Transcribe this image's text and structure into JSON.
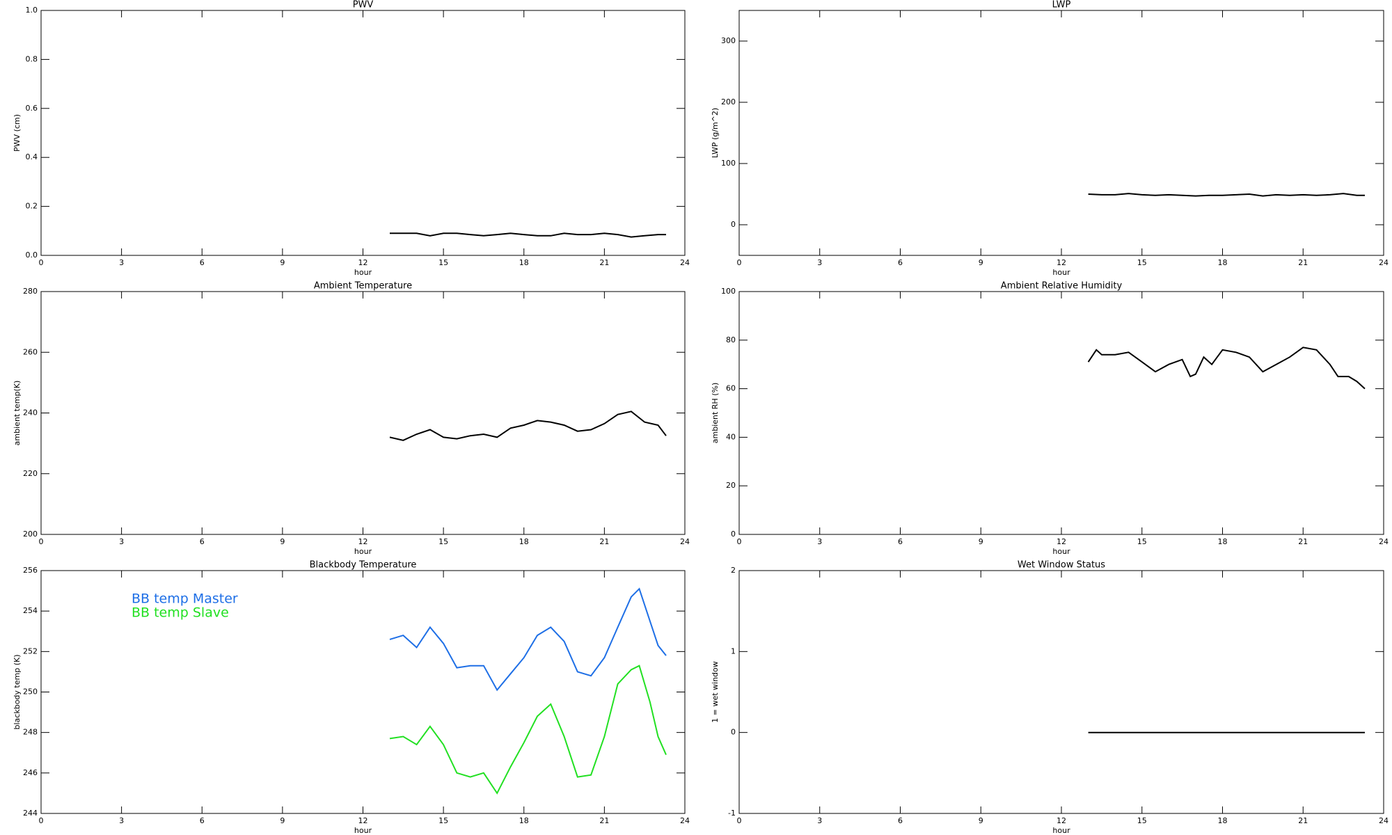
{
  "chart_data": [
    {
      "type": "line",
      "title": "PWV",
      "xlabel": "hour",
      "ylabel": "PWV (cm)",
      "color": "#000000",
      "x": [
        13,
        13.5,
        14,
        14.5,
        15,
        15.5,
        16,
        16.5,
        17,
        17.5,
        18,
        18.5,
        19,
        19.5,
        20,
        20.5,
        21,
        21.5,
        22,
        22.5,
        23,
        23.3
      ],
      "values": [
        0.09,
        0.09,
        0.09,
        0.08,
        0.09,
        0.09,
        0.085,
        0.08,
        0.085,
        0.09,
        0.085,
        0.08,
        0.08,
        0.09,
        0.085,
        0.085,
        0.09,
        0.085,
        0.075,
        0.08,
        0.085,
        0.085
      ],
      "xlim": [
        0,
        24
      ],
      "xticks": [
        0,
        3,
        6,
        9,
        12,
        15,
        18,
        21,
        24
      ],
      "ylim": [
        0,
        1
      ],
      "yticks": [
        {
          "value": 0,
          "label": "0.0"
        },
        0.2,
        0.4,
        0.6,
        0.8,
        {
          "value": 1,
          "label": "1.0"
        }
      ]
    },
    {
      "type": "line",
      "title": "LWP",
      "xlabel": "hour",
      "ylabel": "LWP (g/m^2)",
      "color": "#000000",
      "x": [
        13,
        13.5,
        14,
        14.5,
        15,
        15.5,
        16,
        16.5,
        17,
        17.5,
        18,
        18.5,
        19,
        19.5,
        20,
        20.5,
        21,
        21.5,
        22,
        22.5,
        23,
        23.3
      ],
      "values": [
        50,
        49,
        49,
        51,
        49,
        48,
        49,
        48,
        47,
        48,
        48,
        49,
        50,
        47,
        49,
        48,
        49,
        48,
        49,
        51,
        48,
        48
      ],
      "xlim": [
        0,
        24
      ],
      "xticks": [
        0,
        3,
        6,
        9,
        12,
        15,
        18,
        21,
        24
      ],
      "ylim": [
        -50,
        350
      ],
      "yticks": [
        0,
        100,
        200,
        300
      ]
    },
    {
      "type": "line",
      "title": "Ambient Temperature",
      "xlabel": "hour",
      "ylabel": "ambient temp(K)",
      "color": "#000000",
      "x": [
        13,
        13.5,
        14,
        14.5,
        15,
        15.5,
        16,
        16.5,
        17,
        17.5,
        18,
        18.5,
        19,
        19.5,
        20,
        20.5,
        21,
        21.5,
        22,
        22.5,
        23,
        23.3
      ],
      "values": [
        232,
        231,
        233,
        234.5,
        232,
        231.5,
        232.5,
        233,
        232,
        235,
        236,
        237.5,
        237,
        236,
        234,
        234.5,
        236.5,
        239.5,
        240.5,
        237,
        236,
        232.5
      ],
      "xlim": [
        0,
        24
      ],
      "xticks": [
        0,
        3,
        6,
        9,
        12,
        15,
        18,
        21,
        24
      ],
      "ylim": [
        200,
        280
      ],
      "yticks": [
        200,
        220,
        240,
        260,
        280
      ]
    },
    {
      "type": "line",
      "title": "Ambient Relative Humidity",
      "xlabel": "hour",
      "ylabel": "ambient RH (%)",
      "color": "#000000",
      "x": [
        13,
        13.3,
        13.5,
        14,
        14.5,
        15,
        15.5,
        16,
        16.5,
        16.8,
        17,
        17.3,
        17.6,
        18,
        18.5,
        19,
        19.5,
        20,
        20.5,
        21,
        21.5,
        22,
        22.3,
        22.7,
        23,
        23.3
      ],
      "values": [
        71,
        76,
        74,
        74,
        75,
        71,
        67,
        70,
        72,
        65,
        66,
        73,
        70,
        76,
        75,
        73,
        67,
        70,
        73,
        77,
        76,
        70,
        65,
        65,
        63,
        60
      ],
      "xlim": [
        0,
        24
      ],
      "xticks": [
        0,
        3,
        6,
        9,
        12,
        15,
        18,
        21,
        24
      ],
      "ylim": [
        0,
        100
      ],
      "yticks": [
        0,
        20,
        40,
        60,
        80,
        100
      ]
    },
    {
      "type": "line",
      "title": "Blackbody Temperature",
      "xlabel": "hour",
      "ylabel": "blackbody temp (K)",
      "x": [
        13,
        13.5,
        14,
        14.5,
        15,
        15.5,
        16,
        16.5,
        17,
        17.5,
        18,
        18.5,
        19,
        19.5,
        20,
        20.5,
        21,
        21.5,
        22,
        22.3,
        22.7,
        23,
        23.3
      ],
      "series": [
        {
          "name": "BB temp Master",
          "color": "#1e6fe6",
          "values": [
            252.6,
            252.8,
            252.2,
            253.2,
            252.4,
            251.2,
            251.3,
            251.3,
            250.1,
            250.9,
            251.7,
            252.8,
            253.2,
            252.5,
            251,
            250.8,
            251.7,
            253.2,
            254.7,
            255.1,
            253.5,
            252.3,
            251.8
          ]
        },
        {
          "name": "BB temp Slave",
          "color": "#22e022",
          "values": [
            247.7,
            247.8,
            247.4,
            248.3,
            247.4,
            246,
            245.8,
            246,
            245,
            246.3,
            247.5,
            248.8,
            249.4,
            247.8,
            245.8,
            245.9,
            247.8,
            250.4,
            251.1,
            251.3,
            249.5,
            247.8,
            246.9
          ]
        }
      ],
      "xlim": [
        0,
        24
      ],
      "xticks": [
        0,
        3,
        6,
        9,
        12,
        15,
        18,
        21,
        24
      ],
      "ylim": [
        244,
        256
      ],
      "yticks": [
        244,
        246,
        248,
        250,
        252,
        254,
        256
      ]
    },
    {
      "type": "line",
      "title": "Wet Window Status",
      "xlabel": "hour",
      "ylabel": "1 = wet window",
      "color": "#000000",
      "x": [
        13,
        23.3
      ],
      "values": [
        0,
        0
      ],
      "xlim": [
        0,
        24
      ],
      "xticks": [
        0,
        3,
        6,
        9,
        12,
        15,
        18,
        21,
        24
      ],
      "ylim": [
        -1,
        2
      ],
      "yticks": [
        -1,
        0,
        1,
        2
      ]
    }
  ]
}
